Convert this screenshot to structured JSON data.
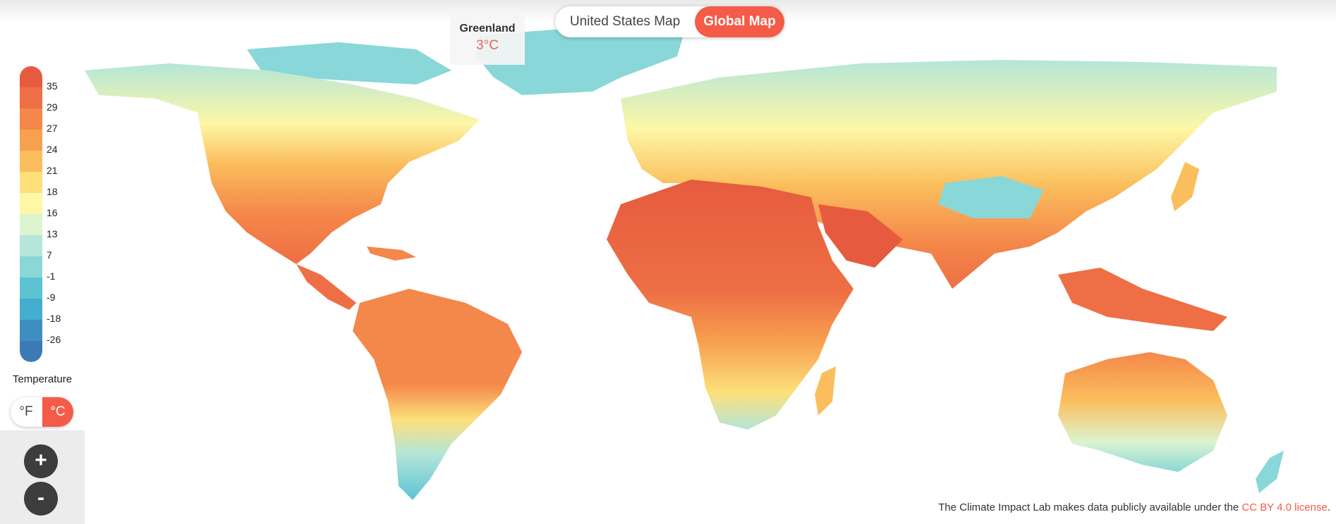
{
  "map_toggle": {
    "us_label": "United States Map",
    "global_label": "Global Map"
  },
  "tooltip": {
    "region": "Greenland",
    "value": "3°C"
  },
  "legend": {
    "title": "Temperature",
    "labels": [
      "35",
      "29",
      "27",
      "24",
      "21",
      "18",
      "16",
      "13",
      "7",
      "-1",
      "-9",
      "-18",
      "-26"
    ],
    "colors": [
      "#e65b3f",
      "#ee6f45",
      "#f4874a",
      "#f7a04f",
      "#fbbe5c",
      "#fde07a",
      "#fdf7a6",
      "#dcf4cf",
      "#b4e6d9",
      "#89d7d8",
      "#5cc3d2",
      "#43aecd",
      "#3e8fc1",
      "#3b7ab6"
    ]
  },
  "unit_toggle": {
    "f_label": "°F",
    "c_label": "°C"
  },
  "zoom": {
    "in_label": "+",
    "out_label": "-"
  },
  "footer": {
    "text": "The Climate Impact Lab makes data publicly available under the ",
    "link_label": "CC BY 4.0 license",
    "end": "."
  }
}
